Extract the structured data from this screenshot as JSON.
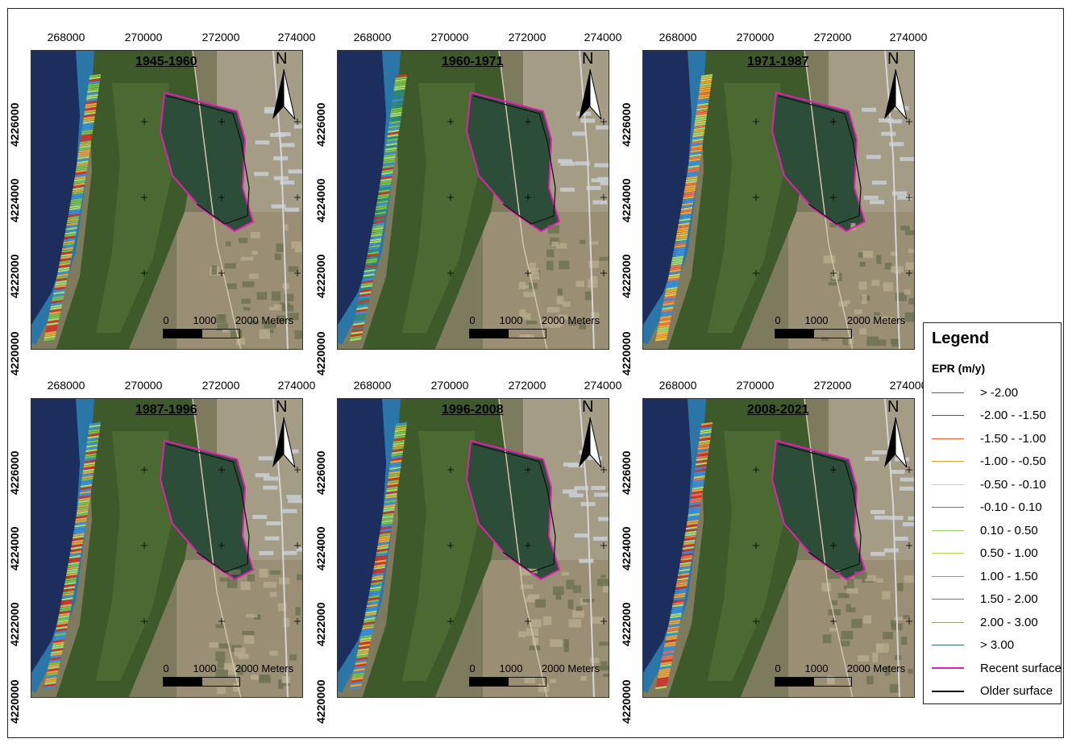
{
  "x_ticks": [
    "268000",
    "270000",
    "272000",
    "274000"
  ],
  "x_ticks_alt": [
    "268000",
    "270000",
    "272000",
    "274000"
  ],
  "y_ticks": [
    "4226000",
    "4224000",
    "4222000",
    "4220000"
  ],
  "north_label": "N",
  "scale": {
    "zero": "0",
    "mid": "1000",
    "end": "2000 Meters"
  },
  "panels": [
    {
      "title": "1945-1960",
      "dominant": [
        "#7bc043",
        "#a6d96a",
        "#3a8fd8",
        "#e8a23a",
        "#d73027"
      ]
    },
    {
      "title": "1960-1971",
      "dominant": [
        "#a6d96a",
        "#7bc043",
        "#3a8fd8",
        "#2c8c7a",
        "#d73027"
      ]
    },
    {
      "title": "1971-1987",
      "dominant": [
        "#f4a52a",
        "#e8c24a",
        "#3a8fd8",
        "#a6d96a",
        "#f46d43"
      ]
    },
    {
      "title": "1987-1996",
      "dominant": [
        "#7bc043",
        "#a6d96a",
        "#3a8fd8",
        "#e8a23a",
        "#d73027"
      ]
    },
    {
      "title": "1996-2008",
      "dominant": [
        "#d73027",
        "#7bc043",
        "#3a8fd8",
        "#f4a52a",
        "#a6d96a"
      ]
    },
    {
      "title": "2008-2021",
      "dominant": [
        "#f46d43",
        "#e8a23a",
        "#d73027",
        "#a6d96a",
        "#3a8fd8"
      ]
    }
  ],
  "legend": {
    "title": "Legend",
    "subtitle": "EPR (m/y)",
    "items": [
      {
        "label": "> -2.00",
        "color": "#c0392b"
      },
      {
        "label": "-2.00 - -1.50",
        "color": "#a0402a"
      },
      {
        "label": "-1.50 - -1.00",
        "color": "#e8602c"
      },
      {
        "label": "-1.00 - -0.50",
        "color": "#e8a23a"
      },
      {
        "label": "-0.50 - -0.10",
        "color": "#f2d36b"
      },
      {
        "label": "-0.10 - 0.10",
        "color": "#3a7fd8"
      },
      {
        "label": "0.10 - 0.50",
        "color": "#9ad36b"
      },
      {
        "label": "0.50 - 1.00",
        "color": "#b6d94a"
      },
      {
        "label": "1.00 - 1.50",
        "color": "#6fbf3a"
      },
      {
        "label": "1.50 - 2.00",
        "color": "#4a9a3a"
      },
      {
        "label": "2.00 - 3.00",
        "color": "#a09a80"
      },
      {
        "label": "> 3.00",
        "color": "#2c6e6a"
      },
      {
        "label": "Recent surface",
        "color": "#e020b0"
      },
      {
        "label": "Older surface",
        "color": "#111111"
      }
    ]
  }
}
